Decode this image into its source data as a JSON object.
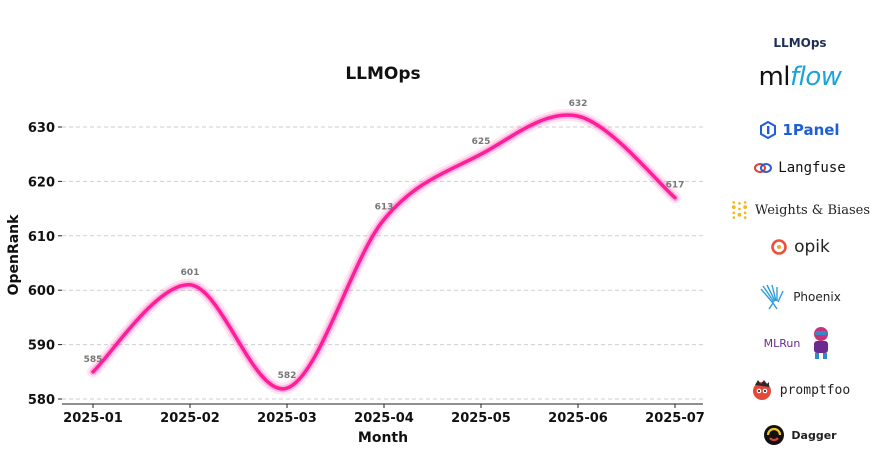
{
  "chart_data": {
    "type": "line",
    "title": "LLMOps",
    "xlabel": "Month",
    "ylabel": "OpenRank",
    "categories": [
      "2025-01",
      "2025-02",
      "2025-03",
      "2025-04",
      "2025-05",
      "2025-06",
      "2025-07"
    ],
    "values": [
      585,
      601,
      582,
      613,
      625,
      632,
      617
    ],
    "data_labels": [
      "585",
      "601",
      "582",
      "613",
      "625",
      "632",
      "617"
    ],
    "y_ticks": [
      "580",
      "590",
      "600",
      "610",
      "620",
      "630"
    ],
    "ylim": [
      579.5,
      633.5
    ],
    "grid": "horizontal dashed",
    "smoothed": true,
    "line_color": "#ff1e9a"
  },
  "logos": [
    {
      "name": "llmops",
      "label": "LLMOps",
      "icon": "none"
    },
    {
      "name": "mlflow",
      "label_a": "ml",
      "label_b": "flow",
      "color": "#1aa3dc"
    },
    {
      "name": "1panel",
      "label": "1Panel",
      "icon": "hexagon-icon",
      "color": "#1e5fd8"
    },
    {
      "name": "langfuse",
      "label": "Langfuse",
      "icon": "langfuse-knot-icon"
    },
    {
      "name": "weights-biases",
      "label": "Weights & Biases",
      "icon": "wandb-dots-icon",
      "color": "#f5b818"
    },
    {
      "name": "opik",
      "label": "opik",
      "icon": "opik-ring-icon",
      "color": "#ef4f3a"
    },
    {
      "name": "phoenix",
      "label": "Phoenix",
      "icon": "phoenix-wing-icon",
      "color": "#2d9cdb"
    },
    {
      "name": "mlrun",
      "label": "MLRun",
      "icon": "mlrun-mascot-icon",
      "color": "#6b2a8e"
    },
    {
      "name": "promptfoo",
      "label": "promptfoo",
      "icon": "promptfoo-mascot-icon"
    },
    {
      "name": "dagger",
      "label": "Dagger",
      "icon": "dagger-icon"
    }
  ]
}
